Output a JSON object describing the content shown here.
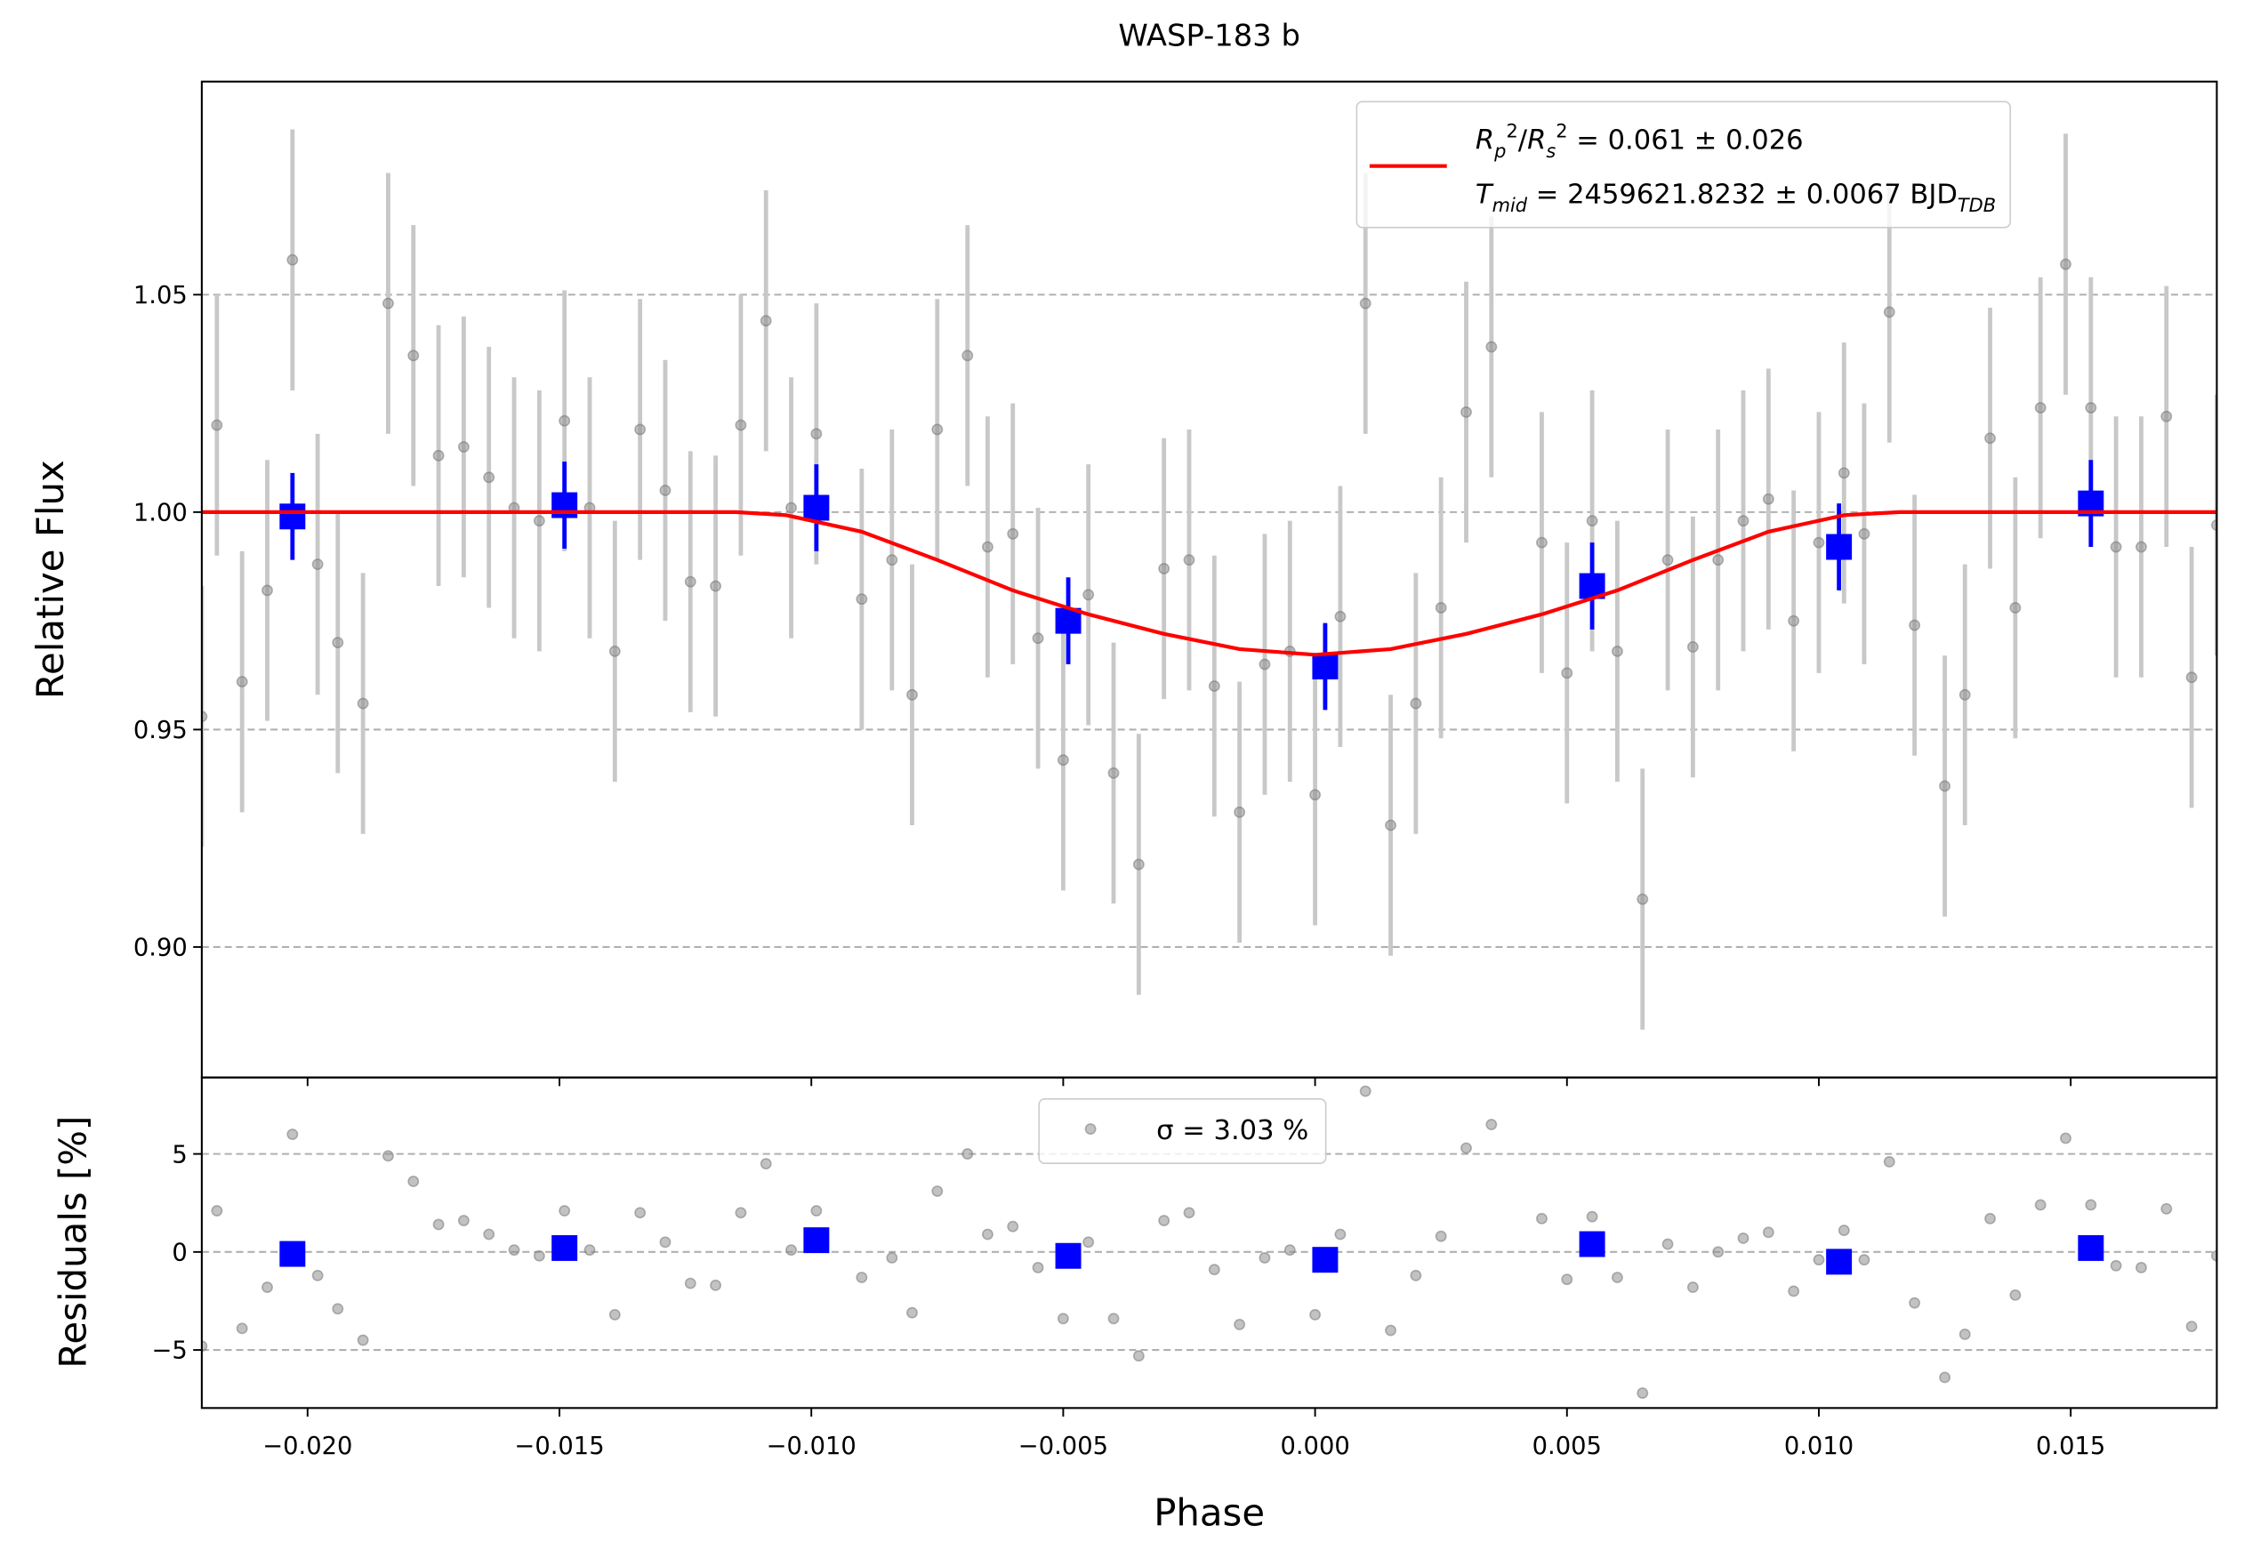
{
  "chart_data": [
    {
      "type": "errorbar",
      "title": "WASP-183 b",
      "ylabel": "Relative Flux",
      "xlim": [
        -0.0221,
        0.0179
      ],
      "ylim": [
        0.87,
        1.099
      ],
      "yticks": [
        {
          "value": 0.9,
          "label": "0.90"
        },
        {
          "value": 0.95,
          "label": "0.95"
        },
        {
          "value": 1.0,
          "label": "1.00"
        },
        {
          "value": 1.05,
          "label": "1.05"
        }
      ],
      "grid": true,
      "legend": "upper right",
      "series": [
        {
          "color": "#909090",
          "marker": "o",
          "yerr": 0.03,
          "x": [
            -0.0221,
            -0.0218,
            -0.0213,
            -0.0208,
            -0.0203,
            -0.0198,
            -0.0194,
            -0.0189,
            -0.0184,
            -0.0179,
            -0.0174,
            -0.0169,
            -0.0164,
            -0.0159,
            -0.0154,
            -0.0149,
            -0.0144,
            -0.0139,
            -0.0134,
            -0.0129,
            -0.0124,
            -0.0119,
            -0.0114,
            -0.0109,
            -0.0104,
            -0.0099,
            -0.009,
            -0.0084,
            -0.008,
            -0.0075,
            -0.0069,
            -0.0065,
            -0.006,
            -0.0055,
            -0.005,
            -0.0045,
            -0.004,
            -0.0035,
            -0.003,
            -0.0025,
            -0.002,
            -0.0015,
            -0.001,
            -0.0005,
            0.0,
            0.0005,
            0.001,
            0.0015,
            0.002,
            0.0025,
            0.003,
            0.0035,
            0.0045,
            0.005,
            0.0055,
            0.006,
            0.0065,
            0.007,
            0.0075,
            0.008,
            0.0085,
            0.009,
            0.0095,
            0.01,
            0.0105,
            0.0109,
            0.0114,
            0.0119,
            0.0125,
            0.0129,
            0.0134,
            0.0139,
            0.0144,
            0.0149,
            0.0154,
            0.0159,
            0.0164,
            0.0169,
            0.0174,
            0.0179
          ],
          "values": [
            0.953,
            1.02,
            0.961,
            0.982,
            1.058,
            0.988,
            0.97,
            0.956,
            1.048,
            1.036,
            1.013,
            1.015,
            1.008,
            1.001,
            0.998,
            1.021,
            1.001,
            0.968,
            1.019,
            1.005,
            0.984,
            0.983,
            1.02,
            1.044,
            1.001,
            1.018,
            0.98,
            0.989,
            0.958,
            1.019,
            1.036,
            0.992,
            0.995,
            0.971,
            0.943,
            0.981,
            0.94,
            0.919,
            0.987,
            0.989,
            0.96,
            0.931,
            0.965,
            0.968,
            0.935,
            0.976,
            1.048,
            0.928,
            0.956,
            0.978,
            1.023,
            1.038,
            0.993,
            0.963,
            0.998,
            0.968,
            0.911,
            0.989,
            0.969,
            0.989,
            0.998,
            1.003,
            0.975,
            0.993,
            1.009,
            0.995,
            1.046,
            0.974,
            0.937,
            0.958,
            1.017,
            0.978,
            1.024,
            1.057,
            1.024,
            0.992,
            0.992,
            1.022,
            0.962,
            0.997
          ]
        },
        {
          "color": "#0000ff",
          "marker": "s",
          "yerr": 0.01,
          "x": [
            -0.0203,
            -0.0149,
            -0.0099,
            -0.0049,
            0.0002,
            0.0055,
            0.0104,
            0.0154
          ],
          "values": [
            0.999,
            1.0016,
            1.001,
            0.975,
            0.9645,
            0.983,
            0.992,
            1.002
          ]
        },
        {
          "type": "line",
          "color": "#ff0000",
          "name": [
            [
              {
                "text": "R",
                "italic": true
              },
              {
                "text": "p",
                "italic": true,
                "shift": "sub"
              },
              {
                "text": "2",
                "shift": "sup"
              },
              {
                "text": "/"
              },
              {
                "text": "R",
                "italic": true
              },
              {
                "text": "s",
                "italic": true,
                "shift": "sub"
              },
              {
                "text": "2",
                "shift": "sup"
              },
              {
                "text": " = 0.061 ± 0.026"
              }
            ],
            [
              {
                "text": "T",
                "italic": true
              },
              {
                "text": "mid",
                "italic": true,
                "shift": "sub"
              },
              {
                "text": " = 2459621.8232 ± 0.0067 BJD"
              },
              {
                "text": "TDB",
                "italic": true,
                "shift": "sub"
              }
            ]
          ],
          "x": [
            -0.0221,
            -0.0115,
            -0.0105,
            -0.009,
            -0.0075,
            -0.006,
            -0.0045,
            -0.003,
            -0.0015,
            0.0,
            0.0015,
            0.003,
            0.0045,
            0.006,
            0.0075,
            0.009,
            0.0105,
            0.0116,
            0.0179
          ],
          "values": [
            1.0,
            1.0,
            0.9993,
            0.9955,
            0.989,
            0.982,
            0.9765,
            0.972,
            0.9685,
            0.9672,
            0.9685,
            0.972,
            0.9765,
            0.982,
            0.989,
            0.9955,
            0.9993,
            1.0,
            1.0
          ]
        }
      ]
    },
    {
      "type": "scatter",
      "xlabel": "Phase",
      "ylabel": "Residuals [%]",
      "xlim": [
        -0.0221,
        0.0179
      ],
      "ylim": [
        -7.96,
        8.9
      ],
      "xticks": [
        {
          "value": -0.02,
          "label": "−0.020"
        },
        {
          "value": -0.015,
          "label": "−0.015"
        },
        {
          "value": -0.01,
          "label": "−0.010"
        },
        {
          "value": -0.005,
          "label": "−0.005"
        },
        {
          "value": 0.0,
          "label": "0.000"
        },
        {
          "value": 0.005,
          "label": "0.005"
        },
        {
          "value": 0.01,
          "label": "0.010"
        },
        {
          "value": 0.015,
          "label": "0.015"
        }
      ],
      "yticks": [
        {
          "value": -5,
          "label": "−5"
        },
        0,
        5
      ],
      "grid": true,
      "legend": "upper center",
      "series": [
        {
          "name": "σ = 3.03 %",
          "color": "#909090",
          "marker": "o",
          "x": [
            -0.0221,
            -0.0218,
            -0.0213,
            -0.0208,
            -0.0203,
            -0.0198,
            -0.0194,
            -0.0189,
            -0.0184,
            -0.0179,
            -0.0174,
            -0.0169,
            -0.0164,
            -0.0159,
            -0.0154,
            -0.0149,
            -0.0144,
            -0.0139,
            -0.0134,
            -0.0129,
            -0.0124,
            -0.0119,
            -0.0114,
            -0.0109,
            -0.0104,
            -0.0099,
            -0.009,
            -0.0084,
            -0.008,
            -0.0075,
            -0.0069,
            -0.0065,
            -0.006,
            -0.0055,
            -0.005,
            -0.0045,
            -0.004,
            -0.0035,
            -0.003,
            -0.0025,
            -0.002,
            -0.0015,
            -0.001,
            -0.0005,
            0.0,
            0.0005,
            0.001,
            0.0015,
            0.002,
            0.0025,
            0.003,
            0.0035,
            0.0045,
            0.005,
            0.0055,
            0.006,
            0.0065,
            0.007,
            0.0075,
            0.008,
            0.0085,
            0.009,
            0.0095,
            0.01,
            0.0105,
            0.0109,
            0.0114,
            0.0119,
            0.0125,
            0.0129,
            0.0134,
            0.0139,
            0.0144,
            0.0149,
            0.0154,
            0.0159,
            0.0164,
            0.0169,
            0.0174,
            0.0179
          ],
          "values": [
            -4.8,
            2.1,
            -3.9,
            -1.8,
            6.0,
            -1.2,
            -2.9,
            -4.5,
            4.9,
            3.6,
            1.4,
            1.6,
            0.9,
            0.1,
            -0.2,
            2.1,
            0.1,
            -3.2,
            2.0,
            0.5,
            -1.6,
            -1.7,
            2.0,
            4.5,
            0.1,
            2.1,
            -1.3,
            -0.3,
            -3.1,
            3.1,
            5.0,
            0.9,
            1.3,
            -0.8,
            -3.4,
            0.5,
            -3.4,
            -5.3,
            1.6,
            2.0,
            -0.9,
            -3.7,
            -0.3,
            0.1,
            -3.2,
            0.9,
            8.2,
            -4.0,
            -1.2,
            0.8,
            5.3,
            6.5,
            1.7,
            -1.4,
            1.8,
            -1.3,
            -7.2,
            0.4,
            -1.8,
            0.0,
            0.7,
            1.0,
            -2.0,
            -0.4,
            1.1,
            -0.4,
            4.6,
            -2.6,
            -6.4,
            -4.2,
            1.7,
            -2.2,
            2.4,
            5.8,
            2.4,
            -0.7,
            -0.8,
            2.2,
            -3.8,
            -0.2
          ]
        },
        {
          "color": "#0000ff",
          "marker": "s",
          "x": [
            -0.0203,
            -0.0149,
            -0.0099,
            -0.0049,
            0.0002,
            0.0055,
            0.0104,
            0.0154
          ],
          "values": [
            -0.1,
            0.2,
            0.6,
            -0.2,
            -0.4,
            0.4,
            -0.5,
            0.2
          ]
        }
      ]
    }
  ]
}
